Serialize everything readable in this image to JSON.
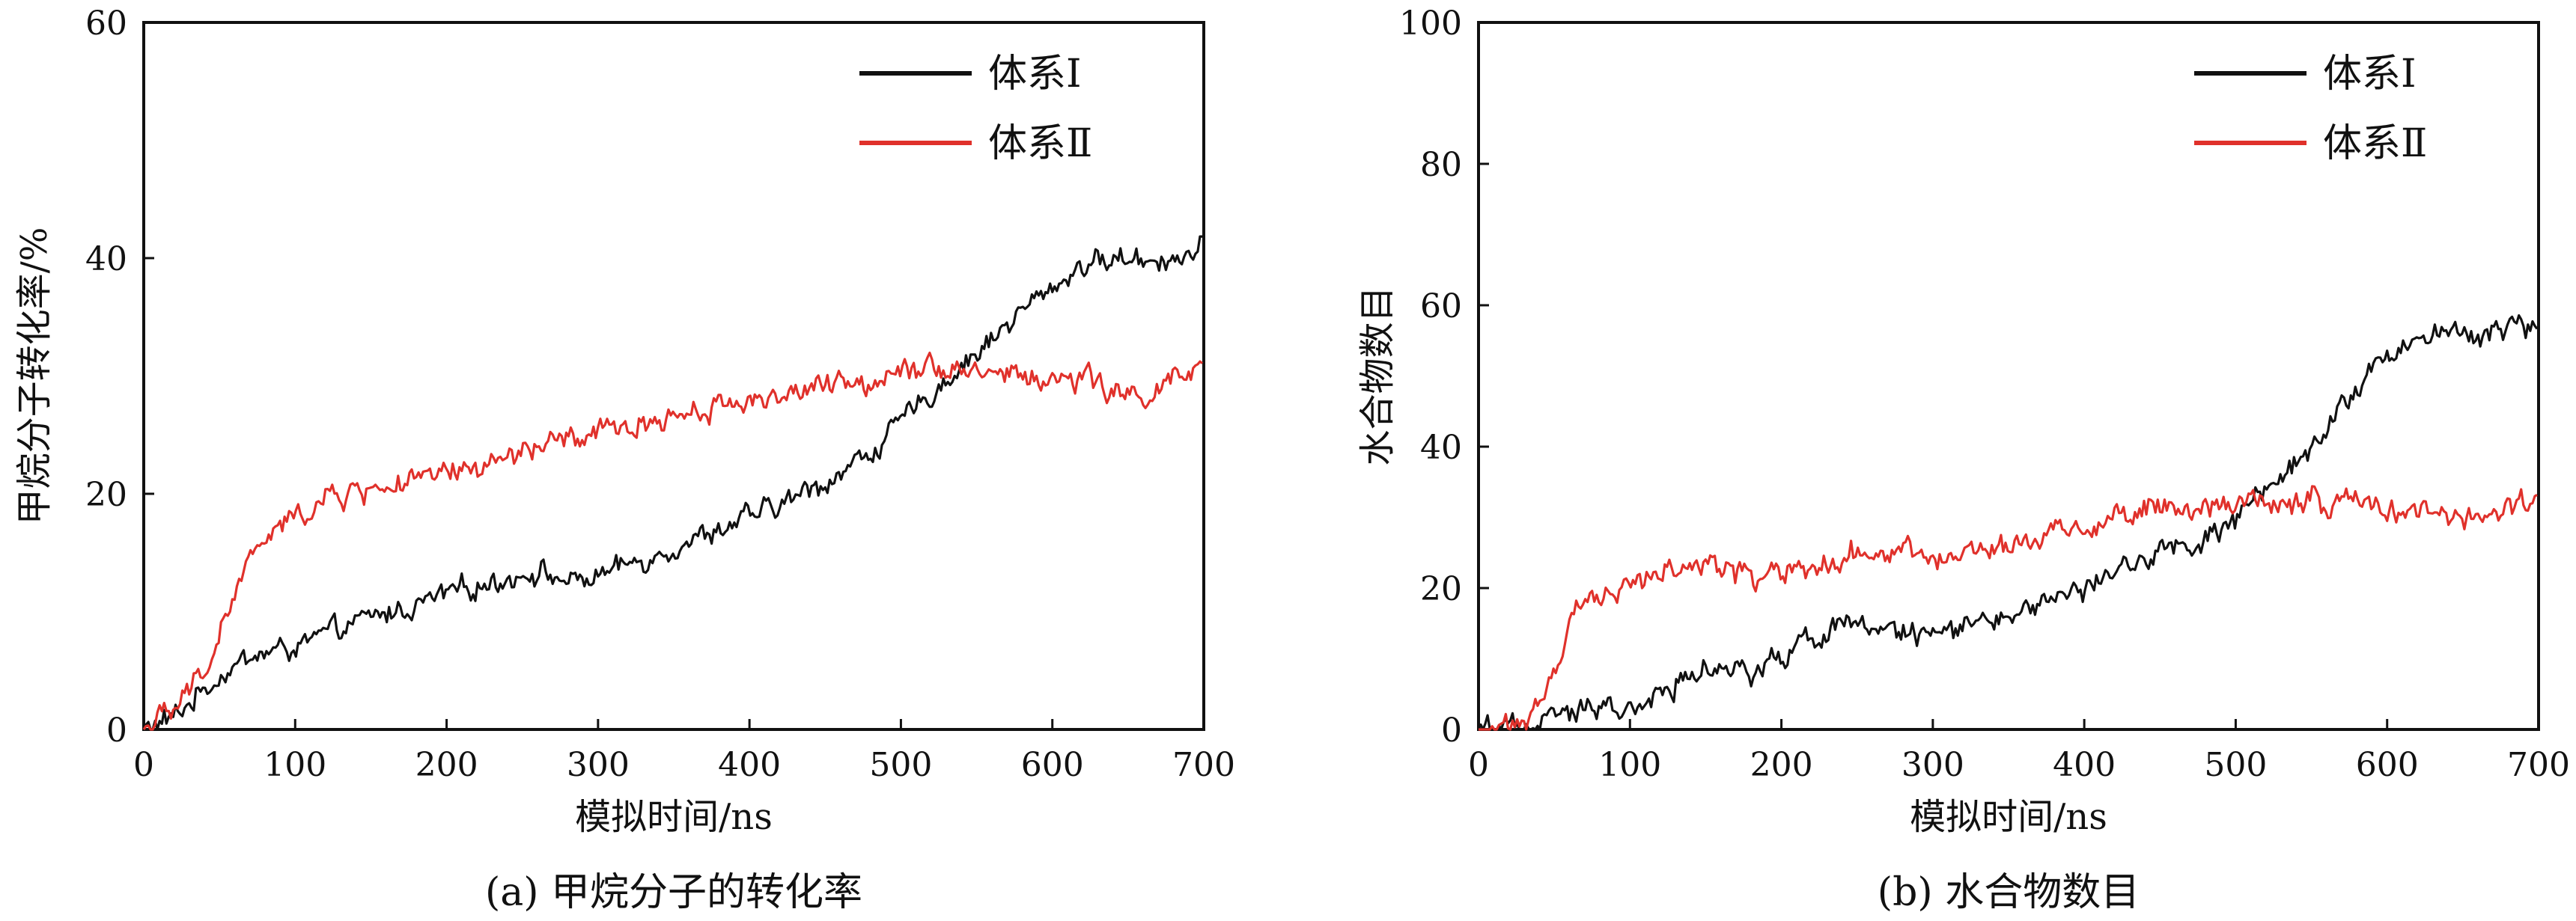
{
  "chart_data": [
    {
      "type": "line",
      "id": "a",
      "caption": "(a) 甲烷分子的转化率",
      "xlabel": "模拟时间/ns",
      "ylabel": "甲烷分子转化率/%",
      "xlim": [
        0,
        700
      ],
      "ylim": [
        0,
        60
      ],
      "xticks": [
        0,
        100,
        200,
        300,
        400,
        500,
        600,
        700
      ],
      "yticks": [
        0,
        20,
        40,
        60
      ],
      "ytick_labels": [
        "0",
        "20",
        "40",
        "60"
      ],
      "legend_position": "top-right",
      "series": [
        {
          "name": "体系Ⅰ",
          "color": "#111111",
          "noise": 0.9,
          "x": [
            0,
            20,
            40,
            60,
            80,
            100,
            120,
            150,
            180,
            200,
            230,
            260,
            280,
            300,
            320,
            350,
            380,
            400,
            420,
            450,
            480,
            500,
            520,
            550,
            580,
            600,
            620,
            650,
            680,
            700
          ],
          "y": [
            0,
            1,
            3.5,
            5.5,
            6.5,
            7,
            8,
            9.5,
            10.5,
            11.5,
            12.5,
            13.5,
            12.5,
            13,
            14,
            15.5,
            17,
            18,
            19,
            21,
            23.5,
            26,
            28.5,
            32,
            35.5,
            37.5,
            39.5,
            40,
            40,
            40.5
          ]
        },
        {
          "name": "体系Ⅱ",
          "color": "#e0312b",
          "noise": 1.0,
          "x": [
            0,
            20,
            40,
            50,
            60,
            70,
            80,
            100,
            120,
            150,
            180,
            200,
            230,
            260,
            300,
            330,
            360,
            400,
            450,
            480,
            500,
            520,
            550,
            580,
            600,
            620,
            650,
            680,
            700
          ],
          "y": [
            0,
            1.5,
            5,
            8,
            11.5,
            14.5,
            16,
            18,
            19.5,
            20.5,
            21,
            21.5,
            22.5,
            24,
            25,
            26,
            27,
            28,
            29,
            29.5,
            31,
            31,
            30.5,
            30,
            29.5,
            30,
            28,
            29.5,
            30.5
          ]
        }
      ]
    },
    {
      "type": "line",
      "id": "b",
      "caption": "(b) 水合物数目",
      "xlabel": "模拟时间/ns",
      "ylabel": "水合物数目",
      "xlim": [
        0,
        700
      ],
      "ylim": [
        0,
        100
      ],
      "xticks": [
        0,
        100,
        200,
        300,
        400,
        500,
        600,
        700
      ],
      "yticks": [
        0,
        20,
        40,
        60,
        80,
        100
      ],
      "ytick_labels": [
        "0",
        "20",
        "40",
        "60",
        "80",
        "100"
      ],
      "legend_position": "top-right",
      "series": [
        {
          "name": "体系Ⅰ",
          "color": "#111111",
          "noise": 1.6,
          "x": [
            0,
            20,
            30,
            50,
            80,
            100,
            120,
            140,
            160,
            180,
            200,
            220,
            240,
            270,
            300,
            330,
            360,
            400,
            450,
            480,
            500,
            520,
            550,
            580,
            600,
            620,
            650,
            680,
            700
          ],
          "y": [
            0,
            0,
            1,
            2,
            2.5,
            3,
            5,
            8,
            9,
            7,
            10,
            13,
            15,
            14,
            13.5,
            15,
            17,
            20,
            25,
            27,
            30,
            34,
            40,
            48,
            53,
            55,
            56,
            57,
            57
          ]
        },
        {
          "name": "体系Ⅱ",
          "color": "#e0312b",
          "noise": 1.6,
          "x": [
            0,
            20,
            30,
            40,
            50,
            60,
            70,
            80,
            100,
            120,
            150,
            180,
            200,
            230,
            260,
            300,
            330,
            360,
            400,
            450,
            480,
            500,
            520,
            550,
            580,
            600,
            620,
            650,
            680,
            700
          ],
          "y": [
            0,
            0,
            1,
            4,
            9,
            14,
            17,
            19,
            21,
            22,
            23.5,
            21,
            22,
            24,
            25,
            24,
            25.5,
            27,
            29,
            31,
            31,
            32,
            33,
            32.5,
            32,
            31,
            30.5,
            30,
            31.5,
            33
          ]
        }
      ]
    }
  ]
}
